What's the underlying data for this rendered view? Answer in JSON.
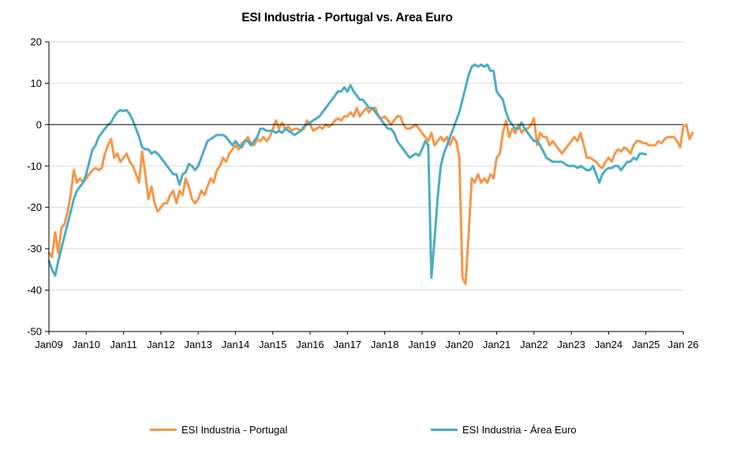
{
  "chart_data": {
    "type": "line",
    "title": "ESI Industria - Portugal vs. Area Euro",
    "xlabel": "",
    "ylabel": "",
    "ylim": [
      -50,
      20
    ],
    "yticks": [
      20,
      10,
      0,
      -10,
      -20,
      -30,
      -40,
      -50
    ],
    "xticks": [
      "Jan09",
      "Jan10",
      "Jan11",
      "Jan12",
      "Jan13",
      "Jan14",
      "Jan15",
      "Jan16",
      "Jan17",
      "Jan18",
      "Jan19",
      "Jan20",
      "Jan21",
      "Jan22",
      "Jan23",
      "Jan24",
      "Jan25",
      "Jan 26"
    ],
    "x_start": "2009-01",
    "x_step": "month",
    "legend_position": "bottom",
    "grid": "horizontal",
    "series": [
      {
        "name": "ESI Industria  - Portugal",
        "color": "#F79646",
        "values": [
          -31,
          -32,
          -26,
          -31,
          -25,
          -24,
          -21,
          -17,
          -11,
          -14,
          -13,
          -14,
          -13,
          -12,
          -11,
          -10.5,
          -11,
          -10.5,
          -7,
          -5,
          -3.5,
          -8,
          -7,
          -9,
          -8,
          -7,
          -9,
          -10,
          -12,
          -14,
          -6.5,
          -12,
          -18,
          -15,
          -19,
          -21,
          -20,
          -19,
          -19,
          -17,
          -16,
          -19,
          -16,
          -17,
          -13,
          -15,
          -18,
          -19,
          -18,
          -16,
          -17,
          -15,
          -13,
          -14,
          -11,
          -10,
          -8,
          -9,
          -7,
          -6,
          -5,
          -6,
          -4.5,
          -4,
          -3,
          -4.5,
          -5,
          -3.5,
          -4,
          -3,
          -4,
          -3,
          -1,
          1,
          -1,
          0.5,
          -1,
          -0.5,
          -1.5,
          -1,
          -1,
          -1.5,
          -1,
          1,
          0,
          -1.5,
          -1,
          -0.5,
          -1,
          0,
          -0.5,
          0,
          1,
          1.5,
          1,
          2,
          2,
          3,
          2,
          4,
          2,
          3,
          4,
          3,
          4,
          4,
          2,
          1.5,
          2,
          1,
          0,
          1,
          2,
          2,
          0,
          -1,
          -1,
          -0.5,
          0,
          -1,
          -2,
          -3,
          -4,
          -2,
          -5,
          -4,
          -3,
          -4,
          -3,
          -5,
          -3,
          -4,
          -8,
          -37,
          -38.5,
          -26,
          -13,
          -14,
          -12,
          -14,
          -13,
          -14,
          -12,
          -13,
          -8,
          -7,
          -2,
          1,
          -3,
          -1,
          -2,
          0,
          -2,
          -1,
          -1,
          0,
          1.5,
          -5,
          -2,
          -3,
          -3,
          -5,
          -4,
          -5,
          -6,
          -7,
          -6,
          -5,
          -4,
          -3,
          -4,
          -2,
          -5,
          -8,
          -8,
          -8.5,
          -9,
          -10,
          -10.5,
          -9,
          -8,
          -9,
          -7,
          -6,
          -6.5,
          -5.5,
          -6,
          -7,
          -5,
          -4,
          -4,
          -4.5,
          -4.5,
          -5,
          -5,
          -5,
          -4,
          -4.5,
          -3.5,
          -3,
          -3,
          -3,
          -4,
          -5.5,
          -0.5,
          0,
          -3.5,
          -2
        ]
      },
      {
        "name": "ESI Industria  - Área Euro",
        "color": "#4BACC6",
        "values": [
          -33,
          -35,
          -36.5,
          -33,
          -30,
          -27,
          -24,
          -21,
          -18,
          -16,
          -15,
          -14,
          -12,
          -9,
          -6,
          -5,
          -3,
          -2,
          -1,
          0,
          0.5,
          2,
          3,
          3.5,
          3.3,
          3.5,
          2.5,
          1,
          -1,
          -3,
          -5.5,
          -6,
          -6,
          -7,
          -6.5,
          -7,
          -8,
          -9,
          -10,
          -11,
          -12,
          -12,
          -14.5,
          -12,
          -11.5,
          -9.5,
          -10,
          -11,
          -10,
          -8,
          -6,
          -4,
          -3.5,
          -3,
          -2.5,
          -2.5,
          -2.5,
          -3,
          -4,
          -5,
          -4,
          -5,
          -5.5,
          -4,
          -4,
          -5,
          -4,
          -3,
          -1,
          -1,
          -1.5,
          -1.5,
          -1.5,
          -2,
          -1.5,
          -2,
          -1,
          -1.5,
          -2,
          -2.5,
          -2,
          -1.5,
          -0.5,
          0,
          0.5,
          1,
          1.5,
          2,
          3,
          4,
          5,
          6,
          7,
          8,
          8,
          9,
          8,
          9.5,
          8,
          7,
          6,
          6,
          5,
          4,
          4,
          3,
          2,
          1,
          0,
          -1,
          -1,
          -2,
          -4,
          -5,
          -6,
          -7,
          -8,
          -7.5,
          -7,
          -7.5,
          -6,
          -4,
          -5,
          -37,
          -28,
          -18,
          -10,
          -7,
          -5,
          -3,
          -1,
          1,
          3,
          6,
          9,
          12,
          14,
          14.5,
          14,
          14.5,
          14,
          14.5,
          13,
          13,
          8,
          7,
          6,
          3,
          1,
          0,
          -1,
          -1,
          0.5,
          -1,
          -2,
          -3,
          -4,
          -4,
          -5,
          -6.5,
          -8,
          -8.5,
          -9,
          -9,
          -9,
          -9,
          -9.5,
          -10,
          -10,
          -10,
          -10.5,
          -10,
          -10.5,
          -11,
          -11,
          -10,
          -12,
          -14,
          -12,
          -11,
          -10.5,
          -10.5,
          -10,
          -10,
          -11,
          -10,
          -9,
          -9,
          -8,
          -8.5,
          -7,
          -7,
          -7.2
        ]
      }
    ]
  }
}
